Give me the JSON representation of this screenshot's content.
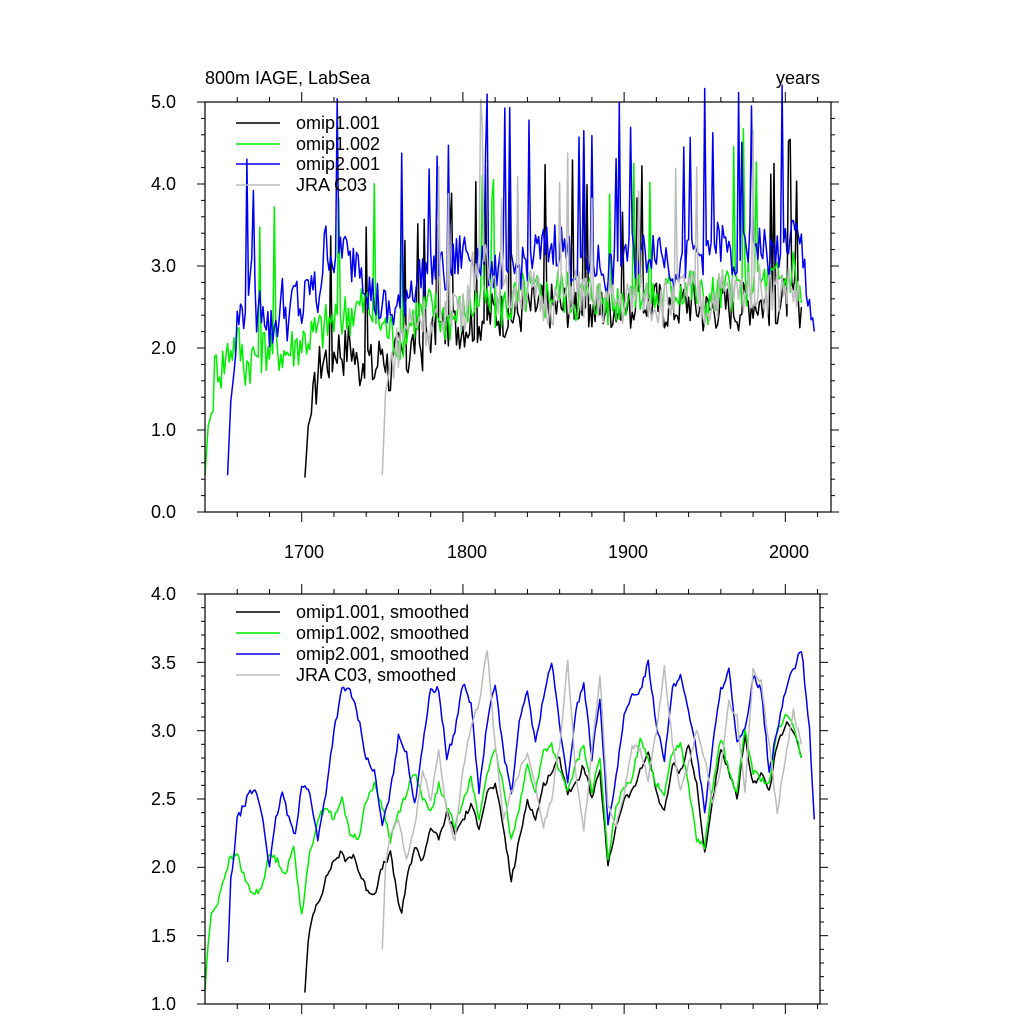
{
  "chart_data": [
    {
      "type": "line",
      "title_left": "800m IAGE, LabSea",
      "title_right": "years",
      "xlim": [
        1640,
        2020
      ],
      "ylim": [
        0,
        5
      ],
      "yticks": [
        "0.0",
        "1.0",
        "2.0",
        "3.0",
        "4.0",
        "5.0"
      ],
      "ytick_values": [
        0,
        1,
        2,
        3,
        4,
        5
      ],
      "xticks": [
        "1700",
        "1800",
        "1900",
        "2000"
      ],
      "xtick_values": [
        1700,
        1800,
        1900,
        2000
      ],
      "legend_location": "top-left",
      "series": [
        {
          "name": "omip1.001",
          "color": "#000000",
          "start": 1702,
          "end": 2010,
          "x": [
            1702,
            1704,
            1706,
            1708,
            1710,
            1712,
            1715,
            1718,
            1722,
            1726,
            1730,
            1735,
            1740,
            1745,
            1750,
            1755,
            1760,
            1765,
            1770,
            1775,
            1780,
            1790,
            1800,
            1810,
            1820,
            1830,
            1840,
            1850,
            1860,
            1870,
            1880,
            1890,
            1900,
            1910,
            1920,
            1930,
            1940,
            1950,
            1960,
            1970,
            1980,
            1990,
            2000,
            2005,
            2010
          ],
          "y": [
            0.42,
            1.05,
            1.2,
            1.45,
            1.7,
            1.85,
            1.9,
            1.85,
            2.05,
            1.95,
            2.1,
            1.75,
            1.95,
            1.7,
            2.05,
            1.65,
            2.0,
            1.85,
            2.1,
            2.0,
            2.2,
            2.25,
            2.3,
            2.35,
            2.45,
            2.4,
            2.5,
            2.55,
            2.5,
            2.6,
            2.45,
            2.55,
            2.45,
            2.6,
            2.55,
            2.5,
            2.6,
            2.45,
            2.55,
            2.5,
            2.6,
            2.55,
            2.6,
            2.7,
            2.5
          ]
        },
        {
          "name": "omip1.002",
          "color": "#00ee00",
          "start": 1640,
          "end": 2010,
          "x": [
            1640,
            1642,
            1644,
            1646,
            1648,
            1650,
            1655,
            1660,
            1665,
            1670,
            1680,
            1690,
            1700,
            1710,
            1720,
            1730,
            1740,
            1750,
            1760,
            1770,
            1780,
            1790,
            1800,
            1810,
            1820,
            1830,
            1840,
            1850,
            1860,
            1870,
            1880,
            1890,
            1900,
            1910,
            1920,
            1930,
            1940,
            1950,
            1960,
            1970,
            1980,
            1990,
            2000,
            2005,
            2010
          ],
          "y": [
            0.45,
            1.05,
            1.2,
            1.7,
            1.85,
            1.75,
            2.0,
            2.1,
            1.8,
            1.9,
            2.05,
            1.95,
            2.1,
            2.2,
            2.35,
            2.45,
            2.55,
            2.3,
            2.1,
            2.4,
            2.5,
            2.35,
            2.45,
            2.6,
            2.5,
            2.55,
            2.7,
            2.6,
            2.75,
            2.6,
            2.7,
            2.55,
            2.65,
            2.75,
            2.6,
            2.7,
            2.8,
            2.55,
            2.7,
            2.75,
            2.85,
            2.8,
            2.85,
            3.0,
            2.55
          ]
        },
        {
          "name": "omip2.001",
          "color": "#0000ee",
          "start": 1654,
          "end": 2018,
          "x": [
            1654,
            1656,
            1658,
            1660,
            1664,
            1668,
            1672,
            1676,
            1680,
            1684,
            1688,
            1692,
            1696,
            1700,
            1705,
            1710,
            1715,
            1720,
            1725,
            1730,
            1735,
            1740,
            1745,
            1750,
            1755,
            1760,
            1765,
            1770,
            1780,
            1790,
            1800,
            1810,
            1820,
            1830,
            1840,
            1850,
            1860,
            1870,
            1880,
            1890,
            1900,
            1910,
            1920,
            1930,
            1940,
            1950,
            1960,
            1970,
            1980,
            1990,
            2000,
            2005,
            2010,
            2015,
            2018
          ],
          "y": [
            0.45,
            1.35,
            1.7,
            2.3,
            2.5,
            3.0,
            2.4,
            2.6,
            2.2,
            2.3,
            2.6,
            2.3,
            2.7,
            2.4,
            2.8,
            2.6,
            3.3,
            3.1,
            3.3,
            3.0,
            3.2,
            2.8,
            2.6,
            2.5,
            2.4,
            2.5,
            2.7,
            2.8,
            3.0,
            2.9,
            3.2,
            3.1,
            3.0,
            2.9,
            3.1,
            3.2,
            3.3,
            3.0,
            3.1,
            2.9,
            3.2,
            3.1,
            3.3,
            3.0,
            3.1,
            3.2,
            3.3,
            3.0,
            3.4,
            3.1,
            3.3,
            3.4,
            3.2,
            2.6,
            2.2
          ]
        },
        {
          "name": "JRA C03",
          "color": "#bbbbbb",
          "start": 1750,
          "end": 2010,
          "x": [
            1750,
            1752,
            1755,
            1760,
            1765,
            1770,
            1775,
            1780,
            1785,
            1790,
            1795,
            1800,
            1805,
            1810,
            1815,
            1820,
            1825,
            1830,
            1840,
            1850,
            1860,
            1870,
            1880,
            1890,
            1900,
            1910,
            1920,
            1930,
            1940,
            1950,
            1960,
            1970,
            1980,
            1990,
            2000,
            2005,
            2010
          ],
          "y": [
            0.45,
            1.45,
            1.8,
            2.05,
            2.3,
            2.35,
            2.4,
            2.2,
            2.35,
            2.5,
            2.6,
            2.4,
            2.9,
            3.1,
            3.2,
            2.8,
            2.6,
            2.7,
            2.75,
            2.55,
            2.6,
            2.75,
            2.5,
            2.6,
            2.55,
            2.7,
            2.55,
            2.6,
            2.75,
            2.5,
            2.7,
            2.65,
            2.8,
            2.7,
            2.75,
            2.7,
            2.6
          ]
        }
      ]
    },
    {
      "type": "line",
      "xlim": [
        1640,
        2020
      ],
      "ylim": [
        1.0,
        4.0
      ],
      "yticks": [
        "1.0",
        "1.5",
        "2.0",
        "2.5",
        "3.0",
        "3.5",
        "4.0"
      ],
      "ytick_values": [
        1.0,
        1.5,
        2.0,
        2.5,
        3.0,
        3.5,
        4.0
      ],
      "legend_location": "top-left",
      "series": [
        {
          "name": "omip1.001, smoothed",
          "color": "#000000",
          "x": [
            1702,
            1704,
            1706,
            1708,
            1712,
            1716,
            1720,
            1724,
            1728,
            1732,
            1736,
            1740,
            1745,
            1750,
            1755,
            1760,
            1762,
            1765,
            1770,
            1775,
            1780,
            1785,
            1790,
            1795,
            1800,
            1805,
            1810,
            1815,
            1820,
            1825,
            1830,
            1835,
            1840,
            1845,
            1850,
            1855,
            1860,
            1865,
            1870,
            1875,
            1880,
            1885,
            1890,
            1895,
            1900,
            1905,
            1910,
            1915,
            1920,
            1925,
            1930,
            1935,
            1940,
            1945,
            1950,
            1955,
            1960,
            1965,
            1970,
            1975,
            1980,
            1985,
            1990,
            1995,
            2000,
            2005,
            2010
          ],
          "y": [
            1.1,
            1.45,
            1.6,
            1.7,
            1.8,
            1.95,
            2.05,
            2.1,
            2.05,
            2.1,
            1.95,
            1.85,
            1.8,
            2.0,
            2.1,
            1.75,
            1.65,
            1.9,
            2.15,
            2.05,
            2.3,
            2.2,
            2.4,
            2.25,
            2.35,
            2.45,
            2.3,
            2.55,
            2.6,
            2.3,
            1.9,
            2.2,
            2.5,
            2.35,
            2.6,
            2.7,
            2.8,
            2.55,
            2.6,
            2.75,
            2.5,
            2.7,
            2.0,
            2.3,
            2.5,
            2.55,
            2.7,
            2.85,
            2.55,
            2.4,
            2.75,
            2.7,
            2.9,
            2.6,
            2.1,
            2.5,
            2.85,
            2.7,
            2.5,
            2.95,
            2.6,
            2.7,
            2.55,
            2.9,
            3.05,
            3.0,
            2.8
          ]
        },
        {
          "name": "omip1.002, smoothed",
          "color": "#00ee00",
          "x": [
            1640,
            1642,
            1644,
            1646,
            1648,
            1650,
            1655,
            1660,
            1665,
            1670,
            1675,
            1680,
            1685,
            1690,
            1695,
            1700,
            1705,
            1710,
            1715,
            1720,
            1725,
            1730,
            1735,
            1740,
            1745,
            1750,
            1755,
            1760,
            1765,
            1770,
            1775,
            1780,
            1785,
            1790,
            1795,
            1800,
            1805,
            1810,
            1815,
            1820,
            1825,
            1830,
            1835,
            1840,
            1845,
            1850,
            1855,
            1860,
            1865,
            1870,
            1875,
            1880,
            1885,
            1890,
            1895,
            1900,
            1905,
            1910,
            1915,
            1920,
            1925,
            1930,
            1935,
            1940,
            1945,
            1950,
            1955,
            1960,
            1965,
            1970,
            1975,
            1980,
            1985,
            1990,
            1995,
            2000,
            2005,
            2010
          ],
          "y": [
            1.1,
            1.45,
            1.65,
            1.7,
            1.75,
            1.85,
            2.05,
            2.1,
            1.9,
            1.8,
            1.85,
            2.1,
            2.05,
            1.95,
            2.15,
            1.65,
            2.1,
            2.35,
            2.45,
            2.35,
            2.5,
            2.25,
            2.2,
            2.5,
            2.6,
            2.45,
            2.2,
            2.4,
            2.55,
            2.7,
            2.5,
            2.4,
            2.6,
            2.45,
            2.3,
            2.5,
            2.65,
            2.35,
            2.7,
            2.85,
            2.6,
            2.2,
            2.45,
            2.75,
            2.55,
            2.85,
            2.9,
            2.7,
            2.55,
            2.75,
            2.9,
            2.55,
            2.8,
            2.05,
            2.45,
            2.6,
            2.65,
            2.95,
            2.8,
            2.6,
            2.55,
            2.85,
            2.9,
            2.6,
            2.2,
            2.15,
            2.6,
            2.95,
            2.7,
            2.55,
            3.0,
            2.7,
            2.65,
            2.6,
            3.0,
            3.1,
            3.05,
            2.8
          ]
        },
        {
          "name": "omip2.001, smoothed",
          "color": "#0000ee",
          "x": [
            1654,
            1656,
            1658,
            1660,
            1664,
            1668,
            1672,
            1676,
            1680,
            1684,
            1688,
            1692,
            1696,
            1700,
            1705,
            1710,
            1715,
            1720,
            1725,
            1730,
            1735,
            1740,
            1745,
            1750,
            1755,
            1760,
            1765,
            1770,
            1775,
            1780,
            1785,
            1790,
            1795,
            1800,
            1805,
            1810,
            1815,
            1820,
            1825,
            1830,
            1835,
            1840,
            1845,
            1850,
            1855,
            1860,
            1865,
            1870,
            1875,
            1880,
            1885,
            1890,
            1895,
            1900,
            1905,
            1910,
            1915,
            1920,
            1925,
            1930,
            1935,
            1940,
            1945,
            1950,
            1955,
            1960,
            1965,
            1970,
            1975,
            1980,
            1985,
            1990,
            1995,
            2000,
            2005,
            2010,
            2015,
            2018
          ],
          "y": [
            1.3,
            1.9,
            2.1,
            2.35,
            2.45,
            2.55,
            2.55,
            2.35,
            2.0,
            2.35,
            2.55,
            2.35,
            2.25,
            2.6,
            2.55,
            2.2,
            2.55,
            3.0,
            3.3,
            3.3,
            3.1,
            2.8,
            2.7,
            2.3,
            2.55,
            2.95,
            2.85,
            2.45,
            2.9,
            3.3,
            3.3,
            2.8,
            3.0,
            3.35,
            3.2,
            2.55,
            3.05,
            3.35,
            2.85,
            2.55,
            3.05,
            3.3,
            2.9,
            3.25,
            3.5,
            3.05,
            2.6,
            3.15,
            3.35,
            2.8,
            3.25,
            2.3,
            2.65,
            3.1,
            3.25,
            3.3,
            3.5,
            3.05,
            2.8,
            3.3,
            3.4,
            3.15,
            2.85,
            2.4,
            2.9,
            3.3,
            3.45,
            2.9,
            3.0,
            3.4,
            3.3,
            2.7,
            3.0,
            3.3,
            3.45,
            3.6,
            3.0,
            2.35
          ]
        },
        {
          "name": "JRA C03, smoothed",
          "color": "#bbbbbb",
          "x": [
            1750,
            1752,
            1755,
            1760,
            1765,
            1770,
            1775,
            1780,
            1785,
            1790,
            1795,
            1800,
            1805,
            1810,
            1815,
            1820,
            1825,
            1830,
            1835,
            1840,
            1845,
            1850,
            1855,
            1860,
            1865,
            1870,
            1875,
            1880,
            1885,
            1890,
            1895,
            1900,
            1905,
            1910,
            1915,
            1920,
            1925,
            1930,
            1935,
            1940,
            1945,
            1950,
            1955,
            1960,
            1965,
            1970,
            1975,
            1980,
            1985,
            1990,
            1995,
            2000,
            2005,
            2010
          ],
          "y": [
            1.38,
            2.0,
            2.25,
            2.35,
            2.05,
            2.3,
            2.7,
            2.5,
            2.85,
            2.4,
            2.2,
            2.7,
            3.05,
            3.2,
            3.6,
            2.9,
            2.35,
            2.55,
            2.7,
            2.85,
            2.6,
            2.3,
            2.5,
            2.9,
            3.5,
            2.7,
            2.25,
            2.85,
            3.4,
            2.45,
            2.3,
            2.55,
            2.9,
            2.85,
            2.65,
            3.0,
            3.45,
            2.9,
            2.55,
            2.75,
            3.0,
            2.8,
            2.45,
            2.75,
            3.2,
            3.1,
            2.55,
            3.45,
            3.35,
            2.9,
            2.4,
            2.8,
            3.15,
            2.9
          ]
        }
      ]
    }
  ]
}
